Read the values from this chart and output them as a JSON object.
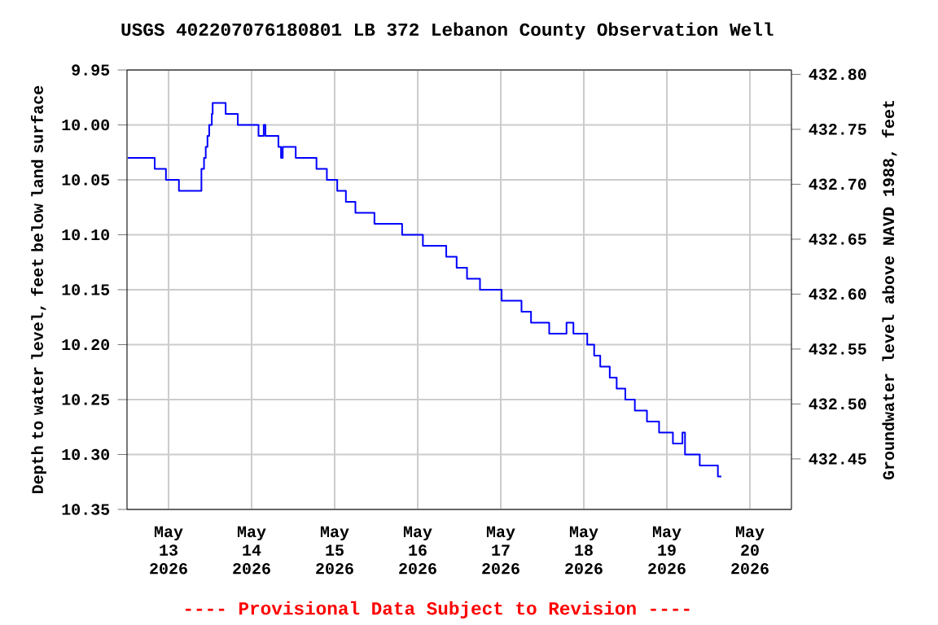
{
  "chart_data": {
    "type": "step",
    "title": "USGS 402207076180801 LB   372 Lebanon County Observation Well",
    "ylabel": "Depth to water level, feet below land surface",
    "y2label": "Groundwater level above NAVD 1988, feet",
    "annotations": [
      "---- Provisional Data Subject to Revision ----"
    ],
    "grid": true,
    "xlim": [
      "2026-05-12T12:00",
      "2026-05-20T12:00"
    ],
    "xticks": [
      {
        "value": "2026-05-13",
        "label": "May 13 2026"
      },
      {
        "value": "2026-05-14",
        "label": "May 14 2026"
      },
      {
        "value": "2026-05-15",
        "label": "May 15 2026"
      },
      {
        "value": "2026-05-16",
        "label": "May 16 2026"
      },
      {
        "value": "2026-05-17",
        "label": "May 17 2026"
      },
      {
        "value": "2026-05-18",
        "label": "May 18 2026"
      },
      {
        "value": "2026-05-19",
        "label": "May 19 2026"
      },
      {
        "value": "2026-05-20",
        "label": "May 20 2026"
      }
    ],
    "ylim": [
      10.35,
      9.95
    ],
    "yticks": [
      9.95,
      {
        "value": 10.0,
        "label": "10.00"
      },
      10.05,
      {
        "value": 10.1,
        "label": "10.10"
      },
      10.15,
      {
        "value": 10.2,
        "label": "10.20"
      },
      10.25,
      {
        "value": 10.3,
        "label": "10.30"
      },
      10.35
    ],
    "y2lim": [
      432.404,
      432.804
    ],
    "y2ticks": [
      432.45,
      {
        "value": 432.5,
        "label": "432.50"
      },
      432.55,
      {
        "value": 432.6,
        "label": "432.60"
      },
      432.65,
      {
        "value": 432.7,
        "label": "432.70"
      },
      432.75,
      {
        "value": 432.8,
        "label": "432.80"
      }
    ],
    "x": [
      "2026-05-12T12:15",
      "2026-05-12T20:00",
      "2026-05-12T23:15",
      "2026-05-13T03:00",
      "2026-05-13T09:30",
      "2026-05-13T10:15",
      "2026-05-13T10:45",
      "2026-05-13T11:15",
      "2026-05-13T11:45",
      "2026-05-13T12:30",
      "2026-05-13T12:45",
      "2026-05-13T16:30",
      "2026-05-13T20:00",
      "2026-05-14T02:00",
      "2026-05-14T03:30",
      "2026-05-14T04:00",
      "2026-05-14T07:45",
      "2026-05-14T08:30",
      "2026-05-14T09:00",
      "2026-05-14T12:45",
      "2026-05-14T18:45",
      "2026-05-14T21:45",
      "2026-05-15T00:45",
      "2026-05-15T03:15",
      "2026-05-15T06:00",
      "2026-05-15T11:30",
      "2026-05-15T19:30",
      "2026-05-16T01:30",
      "2026-05-16T08:15",
      "2026-05-16T11:15",
      "2026-05-16T14:15",
      "2026-05-16T18:00",
      "2026-05-17T00:15",
      "2026-05-17T06:00",
      "2026-05-17T08:45",
      "2026-05-17T14:00",
      "2026-05-17T19:00",
      "2026-05-17T21:00",
      "2026-05-18T01:00",
      "2026-05-18T03:00",
      "2026-05-18T04:45",
      "2026-05-18T07:30",
      "2026-05-18T09:30",
      "2026-05-18T12:00",
      "2026-05-18T14:45",
      "2026-05-18T18:15",
      "2026-05-18T21:45",
      "2026-05-19T01:45",
      "2026-05-19T04:30",
      "2026-05-19T05:15",
      "2026-05-19T09:30",
      "2026-05-19T14:45",
      "2026-05-19T15:45"
    ],
    "series": [
      {
        "color": "#0000ff",
        "values": [
          10.03,
          10.04,
          10.05,
          10.06,
          10.04,
          10.03,
          10.02,
          10.01,
          10.0,
          9.99,
          9.98,
          9.99,
          10.0,
          10.01,
          10.0,
          10.01,
          10.02,
          10.03,
          10.02,
          10.03,
          10.04,
          10.05,
          10.06,
          10.07,
          10.08,
          10.09,
          10.1,
          10.11,
          10.12,
          10.13,
          10.14,
          10.15,
          10.16,
          10.17,
          10.18,
          10.19,
          10.18,
          10.19,
          10.2,
          10.21,
          10.22,
          10.23,
          10.24,
          10.25,
          10.26,
          10.27,
          10.28,
          10.29,
          10.28,
          10.3,
          10.31,
          10.32,
          10.32
        ]
      }
    ]
  }
}
